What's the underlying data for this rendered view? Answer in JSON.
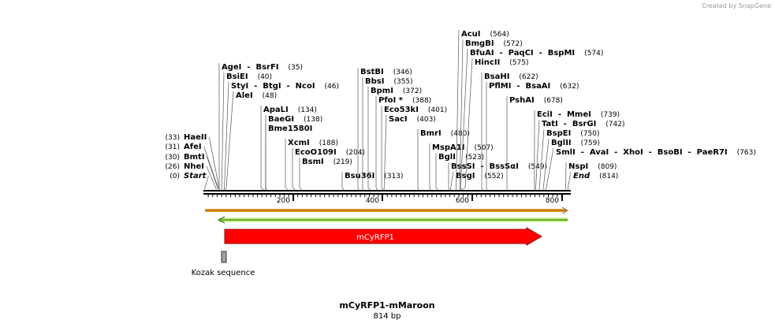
{
  "credit": "Created by SnapGene",
  "left_sites": [
    {
      "label": "HaeII",
      "site": "(33)"
    },
    {
      "label": "AfeI",
      "site": "(31)"
    },
    {
      "label": "BmtI",
      "site": "(30)"
    },
    {
      "label": "NheI",
      "site": "(26)"
    },
    {
      "label": "Start",
      "site": "(0)"
    }
  ],
  "sites": [
    {
      "label": "AgeI  -  BsrFI",
      "site": "(35)"
    },
    {
      "label": "BsiEI",
      "site": "(40)"
    },
    {
      "label": "StyI  -  BtgI  -  NcoI",
      "site": "(46)"
    },
    {
      "label": "AleI",
      "site": "(48)"
    },
    {
      "label": "ApaLI",
      "site": "(134)"
    },
    {
      "label": "BaeGI",
      "site": "(138)"
    },
    {
      "label": "Bme1580I",
      "site": ""
    },
    {
      "label": "XcmI",
      "site": "(188)"
    },
    {
      "label": "EcoO109I",
      "site": "(204)"
    },
    {
      "label": "BsmI",
      "site": "(219)"
    },
    {
      "label": "Bsu36I",
      "site": "(313)"
    },
    {
      "label": "BstBI",
      "site": "(346)"
    },
    {
      "label": "BbsI",
      "site": "(355)"
    },
    {
      "label": "BpmI",
      "site": "(372)"
    },
    {
      "label": "PfoI *",
      "site": "(388)"
    },
    {
      "label": "Eco53kI",
      "site": "(401)"
    },
    {
      "label": "SacI",
      "site": "(403)"
    },
    {
      "label": "BmrI",
      "site": "(480)"
    },
    {
      "label": "MspA1I",
      "site": "(507)"
    },
    {
      "label": "BglI",
      "site": "(523)"
    },
    {
      "label": "BssSI  -  BssSαI",
      "site": "(549)"
    },
    {
      "label": "BsgI",
      "site": "(552)"
    },
    {
      "label": "AcuI",
      "site": "(564)"
    },
    {
      "label": "BmgBI",
      "site": "(572)"
    },
    {
      "label": "BfuAI  -  PaqCI  -  BspMI",
      "site": "(574)"
    },
    {
      "label": "HincII",
      "site": "(575)"
    },
    {
      "label": "BsaHI",
      "site": "(622)"
    },
    {
      "label": "PflMI  -  BsaAI",
      "site": "(632)"
    },
    {
      "label": "PshAI",
      "site": "(678)"
    },
    {
      "label": "EciI  -  MmeI",
      "site": "(739)"
    },
    {
      "label": "TatI  -  BsrGI",
      "site": "(742)"
    },
    {
      "label": "BspEI",
      "site": "(750)"
    },
    {
      "label": "BglII",
      "site": "(759)"
    },
    {
      "label": "SmlI  -  AvaI  -  XhoI  -  BsoBI  -  PaeR7I",
      "site": "(763)"
    },
    {
      "label": "NspI",
      "site": "(809)"
    },
    {
      "label": "End",
      "site": "(814)"
    }
  ],
  "ruler": [
    "200",
    "400",
    "600",
    "800"
  ],
  "features": {
    "cds": "mCyRFP1",
    "kozak": "Kozak sequence"
  },
  "footer": {
    "title": "mCyRFP1-mMaroon",
    "length": "814 bp"
  }
}
